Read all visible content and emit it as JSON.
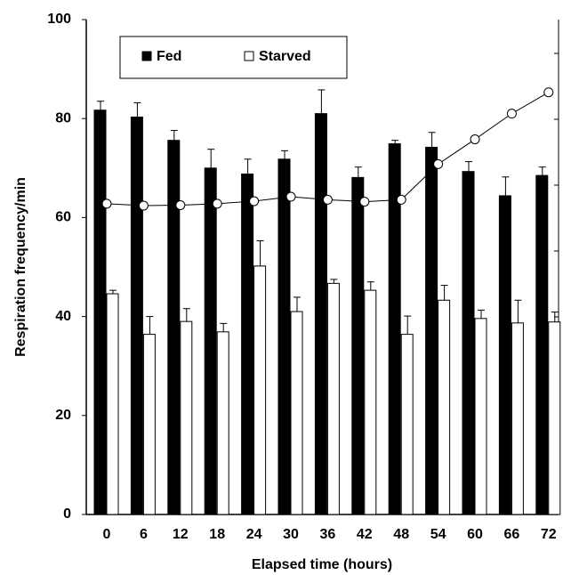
{
  "chart_data": {
    "type": "bar",
    "y_label": "Respiration frequency/min",
    "x_label": "Elapsed time (hours)",
    "categories": [
      "0",
      "6",
      "12",
      "18",
      "24",
      "30",
      "36",
      "42",
      "48",
      "54",
      "60",
      "66",
      "72"
    ],
    "series": [
      {
        "name": "Fed",
        "color": "#000000",
        "values": [
          81.7,
          80.3,
          75.6,
          70,
          68.8,
          71.8,
          81,
          68.1,
          74.9,
          74.2,
          69.3,
          64.4,
          68.5
        ],
        "errors": [
          1.8,
          2.9,
          2.0,
          3.8,
          3.0,
          1.7,
          4.8,
          2.1,
          0.7,
          3.0,
          2.0,
          3.8,
          1.7
        ]
      },
      {
        "name": "Starved",
        "color": "#ffffff",
        "values": [
          44.6,
          36.4,
          39,
          36.9,
          50.2,
          41,
          46.7,
          45.3,
          36.4,
          43.3,
          39.6,
          38.7,
          38.9
        ],
        "errors": [
          0.7,
          3.6,
          2.6,
          1.7,
          5.1,
          2.9,
          0.8,
          1.7,
          3.7,
          3.0,
          1.7,
          4.6,
          2.0
        ]
      },
      {
        "type": "line",
        "color": "#000000",
        "values": [
          62.8,
          62.4,
          62.5,
          62.8,
          63.3,
          64.2,
          63.6,
          63.2,
          63.6,
          70.8,
          75.8,
          81,
          85.3
        ]
      }
    ],
    "ylim": [
      0,
      100
    ],
    "yticks": [
      0,
      20,
      40,
      60,
      80,
      100
    ]
  }
}
